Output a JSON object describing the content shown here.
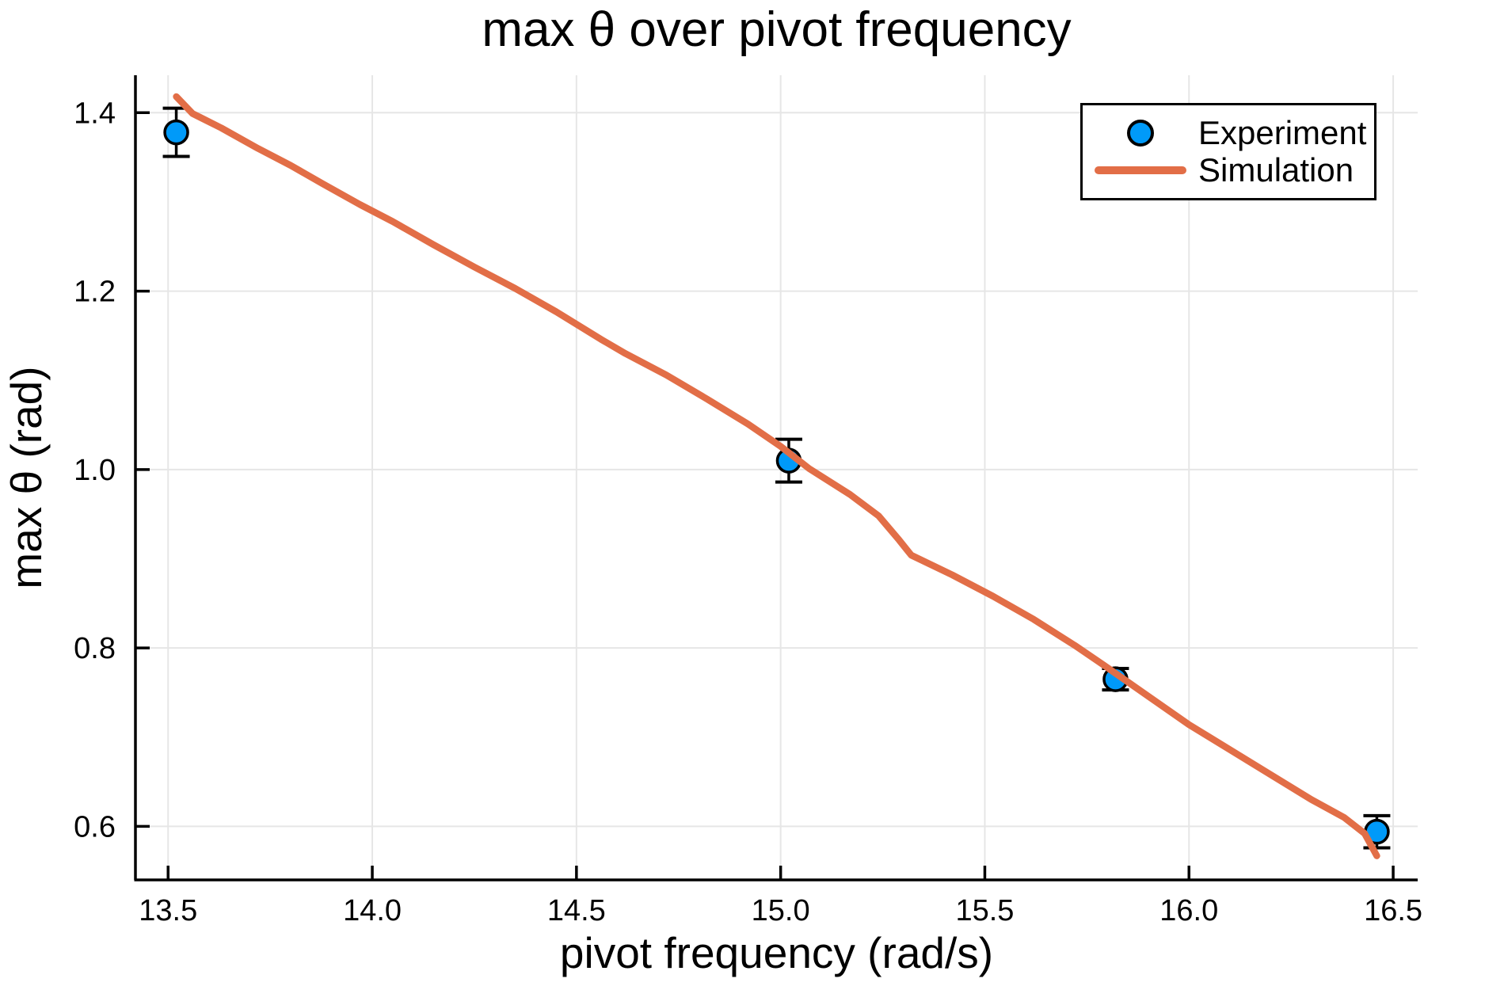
{
  "title": "max θ over pivot frequency",
  "chart_data": {
    "type": "line+scatter",
    "title": "max θ over pivot frequency",
    "xlabel": "pivot frequency (rad/s)",
    "ylabel": "max θ (rad)",
    "xlim": [
      13.42,
      16.56
    ],
    "ylim": [
      0.54,
      1.442
    ],
    "xticks": [
      13.5,
      14.0,
      14.5,
      15.0,
      15.5,
      16.0,
      16.5
    ],
    "xtick_labels": [
      "13.5",
      "14.0",
      "14.5",
      "15.0",
      "15.5",
      "16.0",
      "16.5"
    ],
    "yticks": [
      0.6,
      0.8,
      1.0,
      1.2,
      1.4
    ],
    "ytick_labels": [
      "0.6",
      "0.8",
      "1.0",
      "1.2",
      "1.4"
    ],
    "grid": true,
    "grid_color": "#e6e6e6",
    "axis_color": "#000000",
    "legend_position": "top-right",
    "series": [
      {
        "name": "Experiment",
        "type": "scatter",
        "marker": "circle",
        "color": "#009af9",
        "edge_color": "#000000",
        "x": [
          13.52,
          15.02,
          15.82,
          16.46
        ],
        "y": [
          1.378,
          1.01,
          0.765,
          0.594
        ],
        "yerr": [
          0.027,
          0.024,
          0.012,
          0.018
        ]
      },
      {
        "name": "Simulation",
        "type": "line",
        "color": "#e26e47",
        "x": [
          13.52,
          13.56,
          13.63,
          13.72,
          13.8,
          13.88,
          13.97,
          14.05,
          14.15,
          14.25,
          14.35,
          14.45,
          14.56,
          14.62,
          14.72,
          14.82,
          14.92,
          15.0,
          15.07,
          15.17,
          15.24,
          15.29,
          15.32,
          15.42,
          15.52,
          15.62,
          15.72,
          15.8,
          15.9,
          16.0,
          16.1,
          16.2,
          16.3,
          16.38,
          16.43,
          16.46
        ],
        "y": [
          1.418,
          1.399,
          1.383,
          1.36,
          1.341,
          1.32,
          1.297,
          1.278,
          1.252,
          1.227,
          1.203,
          1.177,
          1.146,
          1.13,
          1.106,
          1.079,
          1.051,
          1.026,
          1.001,
          0.972,
          0.948,
          0.921,
          0.904,
          0.882,
          0.858,
          0.832,
          0.803,
          0.778,
          0.746,
          0.714,
          0.686,
          0.658,
          0.63,
          0.61,
          0.592,
          0.567
        ]
      }
    ]
  },
  "legend": {
    "items": [
      {
        "label": "Experiment",
        "marker": "circle",
        "color": "#009af9"
      },
      {
        "label": "Simulation",
        "marker": "line",
        "color": "#e26e47"
      }
    ]
  }
}
